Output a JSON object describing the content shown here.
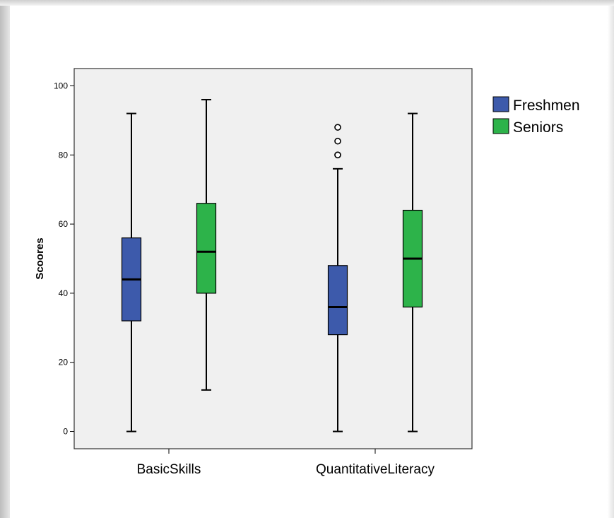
{
  "chart_data": {
    "type": "boxplot",
    "title": "",
    "xlabel": "",
    "ylabel": "Scoores",
    "ylim": [
      -5,
      105
    ],
    "yticks": [
      0,
      20,
      40,
      60,
      80,
      100
    ],
    "categories": [
      "BasicSkills",
      "QuantitativeLiteracy"
    ],
    "legend_position": "right",
    "grid": false,
    "plot_background": "#f0f0f0",
    "series": [
      {
        "name": "Freshmen",
        "color": "#3d5aab",
        "boxes": [
          {
            "category": "BasicSkills",
            "min": 0,
            "q1": 32,
            "median": 44,
            "q3": 56,
            "max": 92,
            "outliers": []
          },
          {
            "category": "QuantitativeLiteracy",
            "min": 0,
            "q1": 28,
            "median": 36,
            "q3": 48,
            "max": 76,
            "outliers": [
              80,
              80,
              84,
              88
            ]
          }
        ]
      },
      {
        "name": "Seniors",
        "color": "#2db34a",
        "boxes": [
          {
            "category": "BasicSkills",
            "min": 12,
            "q1": 40,
            "median": 52,
            "q3": 66,
            "max": 96,
            "outliers": []
          },
          {
            "category": "QuantitativeLiteracy",
            "min": 0,
            "q1": 36,
            "median": 50,
            "q3": 64,
            "max": 92,
            "outliers": []
          }
        ]
      }
    ]
  }
}
